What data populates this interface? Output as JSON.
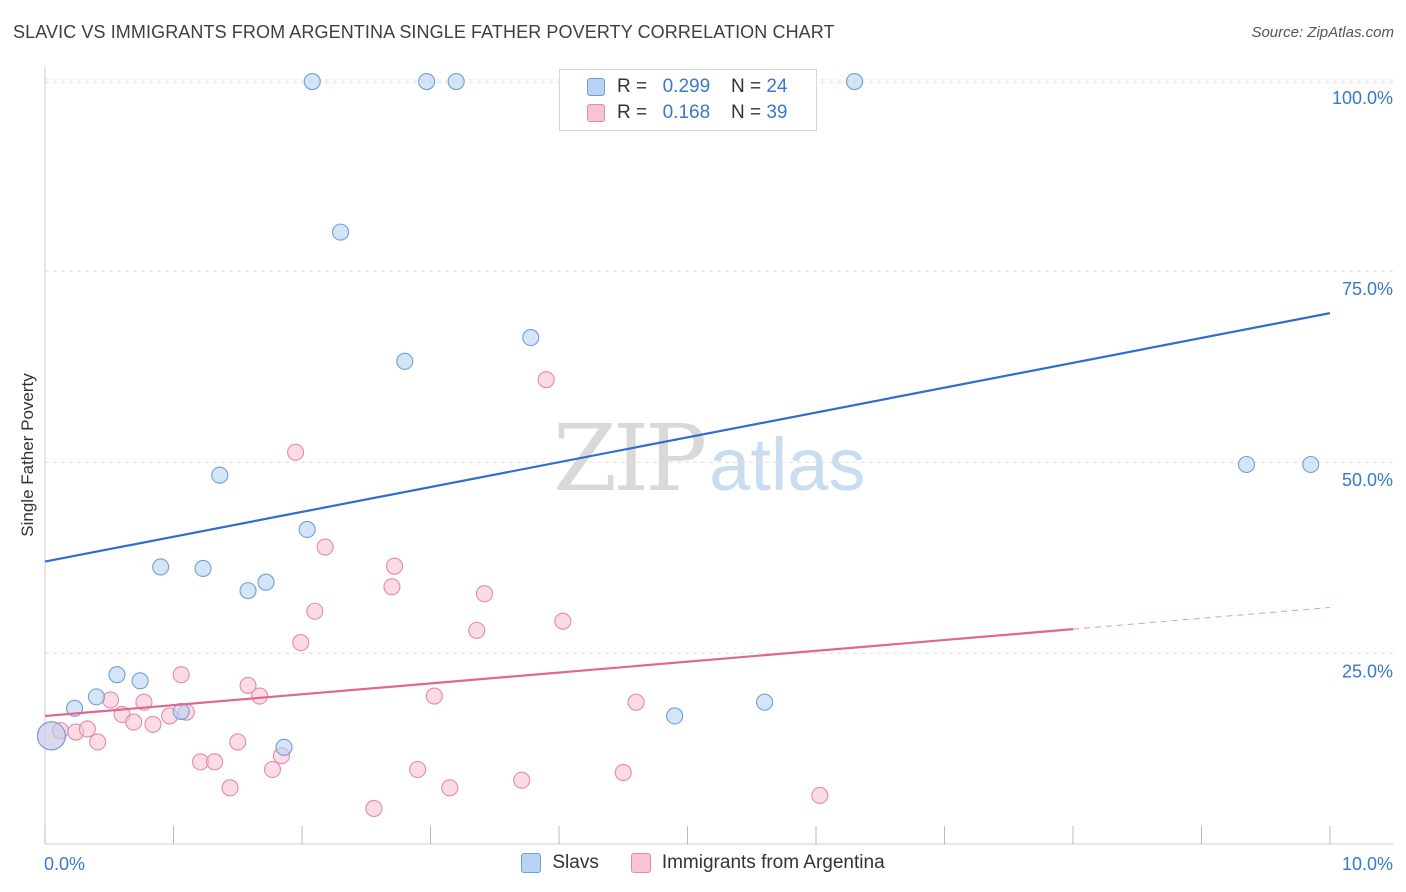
{
  "title": "SLAVIC VS IMMIGRANTS FROM ARGENTINA SINGLE FATHER POVERTY CORRELATION CHART",
  "source": "Source: ZipAtlas.com",
  "watermark": {
    "zip": "ZIP",
    "atlas": "atlas"
  },
  "legend": {
    "rows": [
      {
        "r_label": "R =",
        "r_value": "0.299",
        "n_label": "N =",
        "n_value": "24"
      },
      {
        "r_label": "R =",
        "r_value": "0.168",
        "n_label": "N =",
        "n_value": "39"
      }
    ]
  },
  "bottom_legend": {
    "series_1": "Slavs",
    "series_2": "Immigrants from Argentina"
  },
  "colors": {
    "slavs_fill": "#b9d3f4",
    "slavs_stroke": "#6f9fd8",
    "slavs_line": "#2f6fcc",
    "arg_fill": "#f9c3d3",
    "arg_stroke": "#e58aa8",
    "arg_line": "#e06792",
    "tick": "#3a78c9",
    "grid": "#dddddd"
  },
  "chart_data": {
    "type": "scatter",
    "title": "SLAVIC VS IMMIGRANTS FROM ARGENTINA SINGLE FATHER POVERTY CORRELATION CHART",
    "xlabel": "",
    "ylabel": "Single Father Poverty",
    "xlim": [
      0,
      10
    ],
    "ylim": [
      0,
      102
    ],
    "x_ticks": [
      {
        "value": 0,
        "label": "0.0%"
      },
      {
        "value": 10,
        "label": "10.0%"
      }
    ],
    "y_ticks": [
      {
        "value": 25,
        "label": "25.0%"
      },
      {
        "value": 50,
        "label": "50.0%"
      },
      {
        "value": 75,
        "label": "75.0%"
      },
      {
        "value": 100,
        "label": "100.0%"
      }
    ],
    "grid": true,
    "legend_position": "top-center",
    "series": [
      {
        "name": "Slavs",
        "r": 0.299,
        "n": 24,
        "trend": {
          "x": [
            0,
            10
          ],
          "y": [
            37.0,
            69.5
          ],
          "dashed_from": null
        },
        "points": [
          {
            "x": 0.05,
            "y": 14.2,
            "big": true
          },
          {
            "x": 0.23,
            "y": 17.8
          },
          {
            "x": 0.4,
            "y": 19.3
          },
          {
            "x": 0.56,
            "y": 22.2
          },
          {
            "x": 0.74,
            "y": 21.4
          },
          {
            "x": 0.9,
            "y": 36.3
          },
          {
            "x": 1.06,
            "y": 17.4
          },
          {
            "x": 1.23,
            "y": 36.1
          },
          {
            "x": 1.36,
            "y": 48.3
          },
          {
            "x": 1.58,
            "y": 33.2
          },
          {
            "x": 1.72,
            "y": 34.3
          },
          {
            "x": 1.86,
            "y": 12.7
          },
          {
            "x": 2.04,
            "y": 41.2
          },
          {
            "x": 2.08,
            "y": 99.8
          },
          {
            "x": 2.3,
            "y": 80.1
          },
          {
            "x": 2.8,
            "y": 63.2
          },
          {
            "x": 2.97,
            "y": 99.8
          },
          {
            "x": 3.2,
            "y": 99.8
          },
          {
            "x": 3.78,
            "y": 66.3
          },
          {
            "x": 4.9,
            "y": 16.8
          },
          {
            "x": 5.6,
            "y": 18.6
          },
          {
            "x": 6.3,
            "y": 99.8
          },
          {
            "x": 9.35,
            "y": 49.7
          },
          {
            "x": 9.85,
            "y": 49.7
          }
        ]
      },
      {
        "name": "Immigrants from Argentina",
        "r": 0.168,
        "n": 39,
        "trend": {
          "x": [
            0,
            10
          ],
          "y": [
            16.8,
            31.0
          ],
          "dashed_from": 8.0
        },
        "points": [
          {
            "x": 0.05,
            "y": 14.2,
            "big": true
          },
          {
            "x": 0.12,
            "y": 14.9
          },
          {
            "x": 0.24,
            "y": 14.7
          },
          {
            "x": 0.33,
            "y": 15.1
          },
          {
            "x": 0.41,
            "y": 13.4
          },
          {
            "x": 0.51,
            "y": 18.9
          },
          {
            "x": 0.6,
            "y": 17.0
          },
          {
            "x": 0.69,
            "y": 16.0
          },
          {
            "x": 0.77,
            "y": 18.6
          },
          {
            "x": 0.84,
            "y": 15.7
          },
          {
            "x": 0.97,
            "y": 16.8
          },
          {
            "x": 1.06,
            "y": 22.2
          },
          {
            "x": 1.1,
            "y": 17.3
          },
          {
            "x": 1.21,
            "y": 10.8
          },
          {
            "x": 1.32,
            "y": 10.8
          },
          {
            "x": 1.44,
            "y": 7.4
          },
          {
            "x": 1.5,
            "y": 13.4
          },
          {
            "x": 1.58,
            "y": 20.8
          },
          {
            "x": 1.67,
            "y": 19.4
          },
          {
            "x": 1.77,
            "y": 9.8
          },
          {
            "x": 1.84,
            "y": 11.6
          },
          {
            "x": 1.95,
            "y": 51.3
          },
          {
            "x": 1.99,
            "y": 26.4
          },
          {
            "x": 2.1,
            "y": 30.5
          },
          {
            "x": 2.18,
            "y": 38.9
          },
          {
            "x": 2.56,
            "y": 4.7
          },
          {
            "x": 2.7,
            "y": 33.7
          },
          {
            "x": 2.72,
            "y": 36.4
          },
          {
            "x": 2.9,
            "y": 9.8
          },
          {
            "x": 3.03,
            "y": 19.4
          },
          {
            "x": 3.15,
            "y": 7.4
          },
          {
            "x": 3.36,
            "y": 28.0
          },
          {
            "x": 3.42,
            "y": 32.8
          },
          {
            "x": 3.71,
            "y": 8.4
          },
          {
            "x": 3.9,
            "y": 60.8
          },
          {
            "x": 4.03,
            "y": 29.2
          },
          {
            "x": 4.5,
            "y": 9.4
          },
          {
            "x": 4.6,
            "y": 18.6
          },
          {
            "x": 6.03,
            "y": 6.4
          }
        ]
      }
    ]
  }
}
